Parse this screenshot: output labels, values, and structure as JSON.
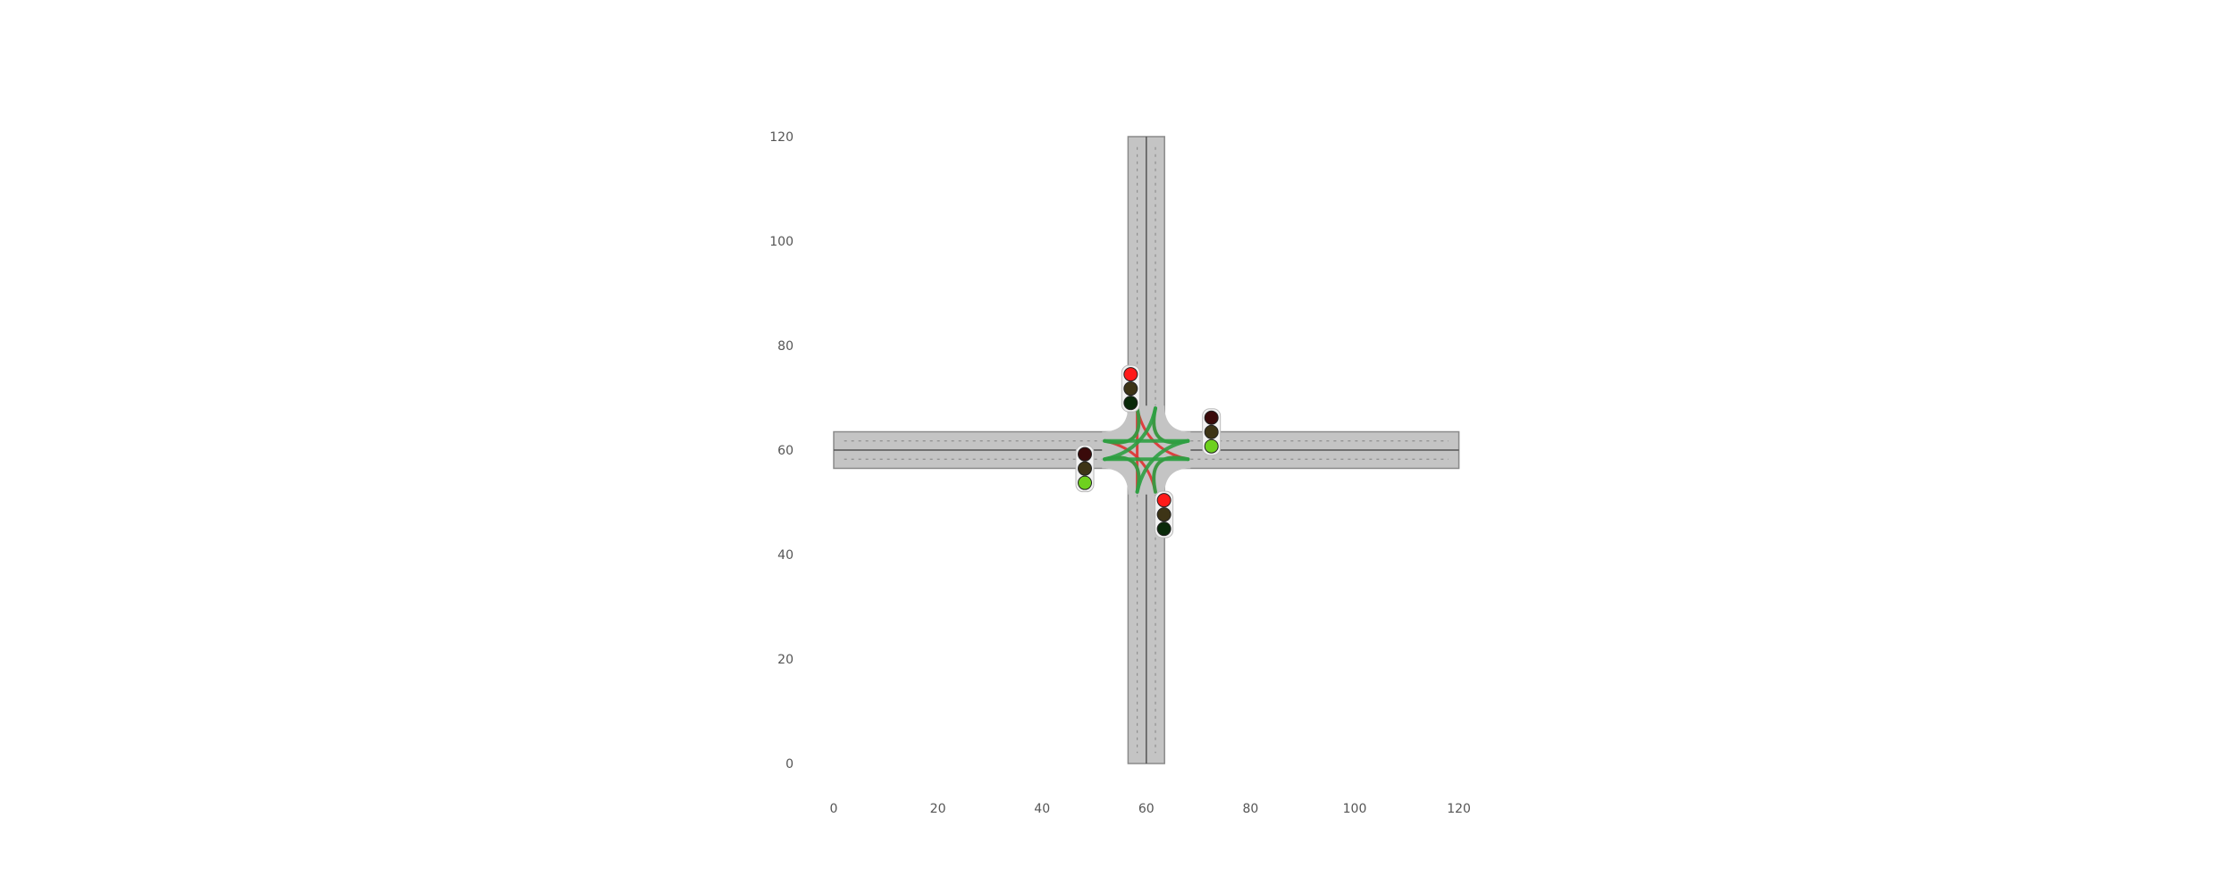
{
  "scene": {
    "x_axis": {
      "range": [
        0,
        120
      ],
      "ticks": [
        "0",
        "20",
        "40",
        "60",
        "80",
        "100",
        "120"
      ]
    },
    "y_axis": {
      "range": [
        0,
        120
      ],
      "ticks": [
        "0",
        "20",
        "40",
        "60",
        "80",
        "100",
        "120"
      ]
    },
    "intersection_center": [
      60,
      60
    ],
    "road_extent": {
      "x": [
        0,
        120
      ],
      "y": [
        0,
        120
      ]
    },
    "colors": {
      "road": "#c4c4c4",
      "road_edge": "#8a8a8a",
      "lane_dash": "#8f8f8f",
      "center_line": "#555555",
      "green_path": "#2ea043",
      "red_path": "#e03131",
      "light_housing": "#f2f2f2",
      "red_on": "#ff1a1a",
      "red_off": "#3a0a0a",
      "yellow_off": "#3d3416",
      "green_on": "#6ed11e",
      "green_off": "#0a2a0a"
    },
    "traffic_lights": [
      {
        "approach": "north",
        "active": "red"
      },
      {
        "approach": "east",
        "active": "green"
      },
      {
        "approach": "west",
        "active": "green"
      },
      {
        "approach": "south",
        "active": "red"
      }
    ]
  }
}
